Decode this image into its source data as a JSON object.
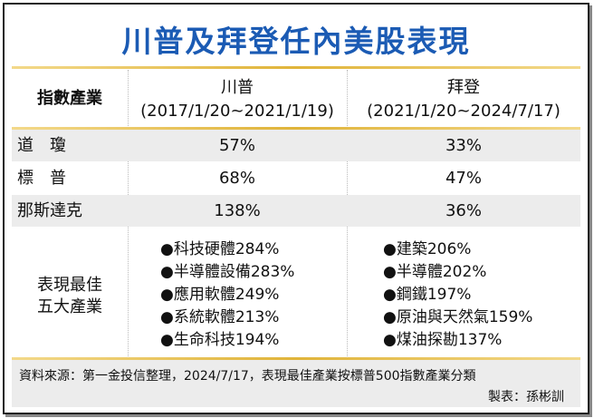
{
  "header": {
    "title": "川普及拜登任內美股表現"
  },
  "table": {
    "columns": {
      "label": "指數產業",
      "trump": {
        "name": "川普",
        "term": "(2017/1/20~2021/1/19)"
      },
      "biden": {
        "name": "拜登",
        "term": "(2021/1/20~2024/7/17)"
      }
    },
    "rows": [
      [
        "道　瓊",
        "57%",
        "33%"
      ],
      [
        "標　普",
        "68%",
        "47%"
      ],
      [
        "那斯達克",
        "138%",
        "36%"
      ]
    ],
    "best": {
      "label": [
        "表現最佳",
        "五大產業"
      ],
      "trump": [
        "●科技硬體284%",
        "●半導體設備283%",
        "●應用軟體249%",
        "●系統軟體213%",
        "●生命科技194%"
      ],
      "biden": [
        "●建築206%",
        "●半導體202%",
        "●鋼鐵197%",
        "●原油與天然氣159%",
        "●煤油探勘137%"
      ]
    }
  },
  "footer": {
    "source": "資料來源：第一金投信整理，2024/7/17，表現最佳產業按標普500指數產業分類",
    "author": "製表：孫彬訓"
  }
}
